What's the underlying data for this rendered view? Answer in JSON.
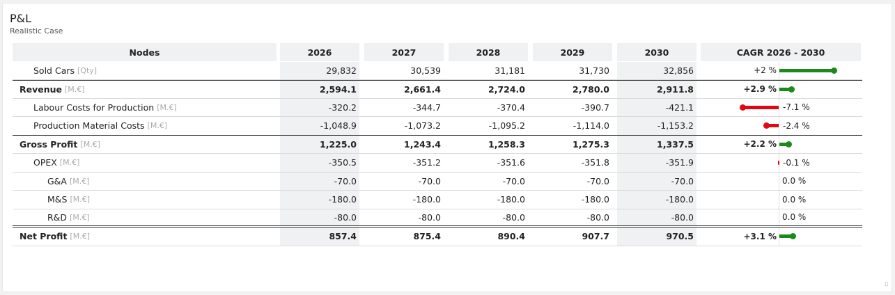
{
  "widget": {
    "title": "P&L",
    "subtitle": "Realistic Case",
    "resize_glyph": "⠿"
  },
  "table": {
    "headers": [
      "Nodes",
      "2026",
      "2027",
      "2028",
      "2029",
      "2030",
      "CAGR 2026 - 2030"
    ],
    "rows": [
      {
        "name": "Sold Cars",
        "unit": "[Qty]",
        "level": 1,
        "bold": false,
        "values": [
          "29,832",
          "30,539",
          "31,181",
          "31,730",
          "32,856"
        ],
        "cagr": "+2 %",
        "cagr_value": 2.0
      },
      {
        "name": "Revenue",
        "unit": "[M.€]",
        "level": 0,
        "bold": true,
        "values": [
          "2,594.1",
          "2,661.4",
          "2,724.0",
          "2,780.0",
          "2,911.8"
        ],
        "cagr": "+2.9 %",
        "cagr_value": 2.9
      },
      {
        "name": "Labour Costs for Production",
        "unit": "[M.€]",
        "level": 1,
        "bold": false,
        "values": [
          "-320.2",
          "-344.7",
          "-370.4",
          "-390.7",
          "-421.1"
        ],
        "cagr": "-7.1 %",
        "cagr_value": -7.1
      },
      {
        "name": "Production Material Costs",
        "unit": "[M.€]",
        "level": 1,
        "bold": false,
        "values": [
          "-1,048.9",
          "-1,073.2",
          "-1,095.2",
          "-1,114.0",
          "-1,153.2"
        ],
        "cagr": "-2.4 %",
        "cagr_value": -2.4
      },
      {
        "name": "Gross Profit",
        "unit": "[M.€]",
        "level": 0,
        "bold": true,
        "values": [
          "1,225.0",
          "1,243.4",
          "1,258.3",
          "1,275.3",
          "1,337.5"
        ],
        "cagr": "+2.2 %",
        "cagr_value": 2.2
      },
      {
        "name": "OPEX",
        "unit": "[M.€]",
        "level": 1,
        "bold": false,
        "values": [
          "-350.5",
          "-351.2",
          "-351.6",
          "-351.8",
          "-351.9"
        ],
        "cagr": "-0.1 %",
        "cagr_value": -0.1
      },
      {
        "name": "G&A",
        "unit": "[M.€]",
        "level": 2,
        "bold": false,
        "values": [
          "-70.0",
          "-70.0",
          "-70.0",
          "-70.0",
          "-70.0"
        ],
        "cagr": "0.0 %",
        "cagr_value": 0.0
      },
      {
        "name": "M&S",
        "unit": "[M.€]",
        "level": 2,
        "bold": false,
        "values": [
          "-180.0",
          "-180.0",
          "-180.0",
          "-180.0",
          "-180.0"
        ],
        "cagr": "0.0 %",
        "cagr_value": 0.0
      },
      {
        "name": "R&D",
        "unit": "[M.€]",
        "level": 2,
        "bold": false,
        "values": [
          "-80.0",
          "-80.0",
          "-80.0",
          "-80.0",
          "-80.0"
        ],
        "cagr": "0.0 %",
        "cagr_value": 0.0
      },
      {
        "name": "Net Profit",
        "unit": "[M.€]",
        "level": 0,
        "bold": true,
        "values": [
          "857.4",
          "875.4",
          "890.4",
          "907.7",
          "970.5"
        ],
        "cagr": "+3.1 %",
        "cagr_value": 3.1
      }
    ]
  },
  "colors": {
    "positive": "#1a8a1a",
    "negative": "#e30613",
    "header_bg": "#f0f1f3"
  }
}
